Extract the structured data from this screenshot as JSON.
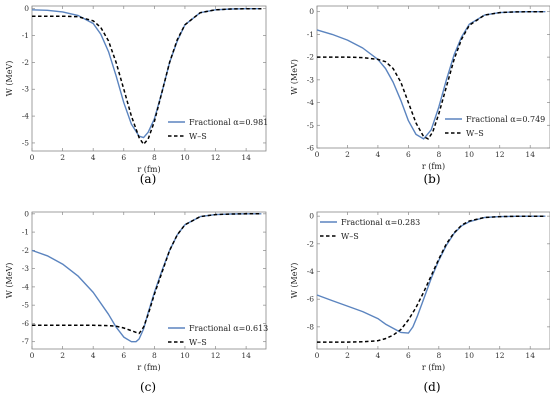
{
  "chart_data": [
    {
      "type": "line",
      "caption": "(a)",
      "xlabel": "r (fm)",
      "ylabel": "W (MeV)",
      "xlim": [
        0,
        15.3
      ],
      "ylim": [
        -5.3,
        0.1
      ],
      "xticks": [
        0,
        2,
        4,
        6,
        8,
        10,
        12,
        14
      ],
      "yticks": [
        0,
        -1,
        -2,
        -3,
        -4,
        -5
      ],
      "legend_position": "lower-right",
      "series": [
        {
          "name": "Fractional α=0.981",
          "color": "#5b84bf",
          "style": "solid",
          "x": [
            0,
            1,
            2,
            3,
            4,
            4.5,
            5,
            5.5,
            6,
            6.5,
            7,
            7.3,
            7.6,
            8,
            8.5,
            9,
            9.5,
            10,
            11,
            12,
            13,
            14,
            15
          ],
          "y": [
            -0.04,
            -0.06,
            -0.12,
            -0.25,
            -0.55,
            -0.95,
            -1.6,
            -2.5,
            -3.5,
            -4.3,
            -4.75,
            -4.8,
            -4.6,
            -4.1,
            -3.1,
            -2.0,
            -1.2,
            -0.6,
            -0.15,
            -0.04,
            -0.01,
            0,
            0
          ]
        },
        {
          "name": "W–S",
          "color": "#000000",
          "style": "dashed",
          "x": [
            0,
            1,
            2,
            3,
            4,
            4.5,
            5,
            5.5,
            6,
            6.5,
            7,
            7.3,
            7.6,
            8,
            8.5,
            9,
            9.5,
            10,
            11,
            12,
            13,
            14,
            15
          ],
          "y": [
            -0.28,
            -0.28,
            -0.28,
            -0.3,
            -0.45,
            -0.7,
            -1.2,
            -2.0,
            -3.0,
            -4.0,
            -4.8,
            -5.05,
            -4.85,
            -4.2,
            -3.1,
            -2.0,
            -1.15,
            -0.6,
            -0.15,
            -0.04,
            -0.01,
            0,
            0
          ]
        }
      ]
    },
    {
      "type": "line",
      "caption": "(b)",
      "xlabel": "r (fm)",
      "ylabel": "W (MeV)",
      "xlim": [
        0,
        15.3
      ],
      "ylim": [
        -6.0,
        0.25
      ],
      "xticks": [
        0,
        2,
        4,
        6,
        8,
        10,
        12,
        14
      ],
      "yticks": [
        0,
        -1,
        -2,
        -3,
        -4,
        -5,
        -6
      ],
      "legend_position": "lower-right",
      "series": [
        {
          "name": "Fractional α=0.749",
          "color": "#5b84bf",
          "style": "solid",
          "x": [
            0,
            1,
            2,
            3,
            4,
            4.5,
            5,
            5.5,
            6,
            6.5,
            7,
            7.5,
            8,
            8.5,
            9,
            9.5,
            10,
            11,
            12,
            13,
            14,
            15
          ],
          "y": [
            -0.8,
            -1.0,
            -1.25,
            -1.6,
            -2.1,
            -2.5,
            -3.1,
            -3.9,
            -4.8,
            -5.4,
            -5.6,
            -5.2,
            -4.2,
            -3.0,
            -1.9,
            -1.1,
            -0.55,
            -0.15,
            -0.04,
            -0.01,
            0,
            0
          ]
        },
        {
          "name": "W–S",
          "color": "#000000",
          "style": "dashed",
          "x": [
            0,
            1,
            2,
            3,
            4,
            4.5,
            5,
            5.5,
            6,
            6.5,
            7,
            7.3,
            7.6,
            8,
            8.5,
            9,
            9.5,
            10,
            11,
            12,
            13,
            14,
            15
          ],
          "y": [
            -2.0,
            -2.0,
            -2.0,
            -2.02,
            -2.1,
            -2.2,
            -2.5,
            -3.1,
            -4.0,
            -4.9,
            -5.5,
            -5.6,
            -5.3,
            -4.5,
            -3.3,
            -2.1,
            -1.2,
            -0.6,
            -0.15,
            -0.04,
            -0.01,
            0,
            0
          ]
        }
      ]
    },
    {
      "type": "line",
      "caption": "(c)",
      "xlabel": "r (fm)",
      "ylabel": "W (MeV)",
      "xlim": [
        0,
        15.3
      ],
      "ylim": [
        -7.4,
        0.1
      ],
      "xticks": [
        0,
        2,
        4,
        6,
        8,
        10,
        12,
        14
      ],
      "yticks": [
        0,
        -1,
        -2,
        -3,
        -4,
        -5,
        -6,
        -7
      ],
      "legend_position": "lower-right",
      "series": [
        {
          "name": "Fractional α=0.613",
          "color": "#5b84bf",
          "style": "solid",
          "x": [
            0,
            1,
            2,
            3,
            4,
            5,
            5.5,
            6,
            6.5,
            6.8,
            7,
            7.3,
            7.6,
            8,
            8.5,
            9,
            9.5,
            10,
            11,
            12,
            13,
            14,
            15
          ],
          "y": [
            -2.0,
            -2.3,
            -2.75,
            -3.4,
            -4.3,
            -5.5,
            -6.2,
            -6.75,
            -7.0,
            -7.0,
            -6.85,
            -6.3,
            -5.4,
            -4.3,
            -3.1,
            -2.0,
            -1.15,
            -0.6,
            -0.15,
            -0.04,
            -0.01,
            0,
            0
          ]
        },
        {
          "name": "W–S",
          "color": "#000000",
          "style": "dashed",
          "x": [
            0,
            1,
            2,
            3,
            4,
            5,
            5.5,
            6,
            6.5,
            7,
            7.3,
            7.6,
            8,
            8.5,
            9,
            9.5,
            10,
            11,
            12,
            13,
            14,
            15
          ],
          "y": [
            -6.1,
            -6.1,
            -6.1,
            -6.1,
            -6.1,
            -6.12,
            -6.15,
            -6.25,
            -6.4,
            -6.55,
            -6.2,
            -5.5,
            -4.4,
            -3.2,
            -2.0,
            -1.15,
            -0.6,
            -0.15,
            -0.04,
            -0.01,
            0,
            0
          ]
        }
      ]
    },
    {
      "type": "line",
      "caption": "(d)",
      "xlabel": "r (fm)",
      "ylabel": "W (MeV)",
      "xlim": [
        0,
        15.3
      ],
      "ylim": [
        -9.6,
        0.3
      ],
      "xticks": [
        0,
        2,
        4,
        6,
        8,
        10,
        12,
        14
      ],
      "yticks": [
        0,
        -2,
        -4,
        -6,
        -8
      ],
      "legend_position": "top-left",
      "series": [
        {
          "name": "Fractional α=0.283",
          "color": "#5b84bf",
          "style": "solid",
          "x": [
            0,
            1,
            2,
            3,
            4,
            4.5,
            5,
            5.5,
            6,
            6.3,
            6.6,
            7,
            7.5,
            8,
            8.5,
            9,
            9.5,
            10,
            11,
            12,
            13,
            14,
            15
          ],
          "y": [
            -5.7,
            -6.1,
            -6.5,
            -6.9,
            -7.4,
            -7.8,
            -8.1,
            -8.4,
            -8.45,
            -8.0,
            -7.2,
            -6.0,
            -4.5,
            -3.2,
            -2.1,
            -1.25,
            -0.7,
            -0.4,
            -0.1,
            -0.03,
            -0.01,
            0,
            0
          ]
        },
        {
          "name": "W–S",
          "color": "#000000",
          "style": "dashed",
          "x": [
            0,
            1,
            2,
            3,
            4,
            4.5,
            5,
            5.5,
            6,
            6.5,
            7,
            7.5,
            8,
            8.5,
            9,
            9.5,
            10,
            11,
            12,
            13,
            14,
            15
          ],
          "y": [
            -9.1,
            -9.1,
            -9.1,
            -9.08,
            -9.0,
            -8.85,
            -8.6,
            -8.2,
            -7.5,
            -6.6,
            -5.5,
            -4.3,
            -3.1,
            -2.0,
            -1.2,
            -0.65,
            -0.35,
            -0.1,
            -0.03,
            -0.01,
            0,
            0
          ]
        }
      ]
    }
  ]
}
